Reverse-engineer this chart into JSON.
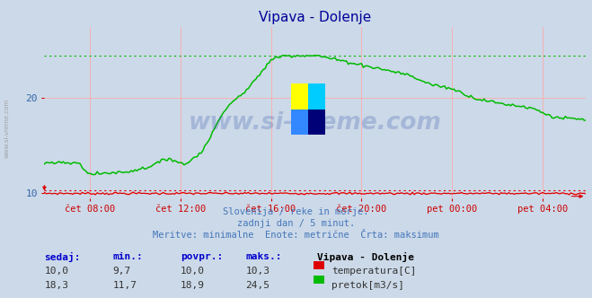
{
  "title": "Vipava - Dolenje",
  "background_color": "#ccd9e8",
  "grid_color_v": "#ffaaaa",
  "grid_color_h": "#ffaaaa",
  "xlabel": "",
  "ylabel": "",
  "ylim": [
    9.5,
    27.5
  ],
  "yticks": [
    10,
    20
  ],
  "xtick_labels": [
    "čet 08:00",
    "čet 12:00",
    "čet 16:00",
    "čet 20:00",
    "pet 00:00",
    "pet 04:00"
  ],
  "watermark": "www.si-vreme.com",
  "subtitle1": "Slovenija / reke in morje.",
  "subtitle2": "zadnji dan / 5 minut.",
  "subtitle3": "Meritve: minimalne  Enote: metrične  Črta: maksimum",
  "legend_title": "Vipava - Dolenje",
  "temp_label": "temperatura[C]",
  "flow_label": "pretok[m3/s]",
  "temp_color": "#dd0000",
  "flow_color": "#00bb00",
  "temp_min": 9.7,
  "temp_max": 10.3,
  "flow_min": 11.7,
  "flow_max": 24.5,
  "table_headers": [
    "sedaj:",
    "min.:",
    "povpr.:",
    "maks.:"
  ],
  "temp_row": [
    "10,0",
    "9,7",
    "10,0",
    "10,3"
  ],
  "flow_row": [
    "18,3",
    "11,7",
    "18,9",
    "24,5"
  ],
  "n_points": 288,
  "left_text": "www.si-vreme.com",
  "logo_colors": [
    "#ffff00",
    "#00ddff",
    "#3399ff",
    "#000066"
  ]
}
